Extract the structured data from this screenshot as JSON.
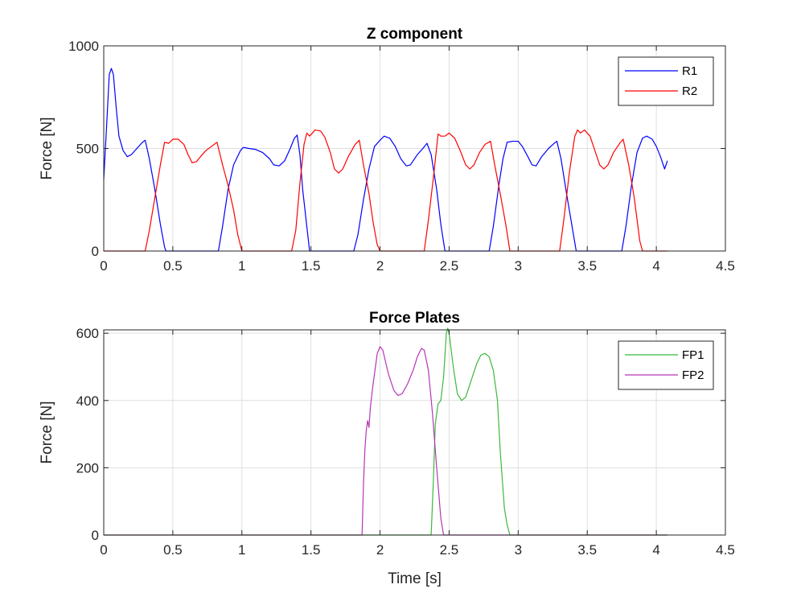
{
  "chart_data": [
    {
      "type": "line",
      "title": "Z component",
      "xlabel": "",
      "ylabel": "Force [N]",
      "xlim": [
        0,
        4.5
      ],
      "ylim": [
        0,
        1000
      ],
      "xticks": [
        0,
        0.5,
        1,
        1.5,
        2,
        2.5,
        3,
        3.5,
        4,
        4.5
      ],
      "yticks": [
        0,
        500,
        1000
      ],
      "xtick_labels": [
        "0",
        "0.5",
        "1",
        "1.5",
        "2",
        "2.5",
        "3",
        "3.5",
        "4",
        "4.5"
      ],
      "ytick_labels": [
        "0",
        "500",
        "1000"
      ],
      "grid": true,
      "legend_position": "top-right",
      "series": [
        {
          "name": "R1",
          "color": "#0000ff",
          "points": [
            [
              0,
              350
            ],
            [
              0.02,
              600
            ],
            [
              0.04,
              860
            ],
            [
              0.055,
              890
            ],
            [
              0.07,
              860
            ],
            [
              0.09,
              700
            ],
            [
              0.11,
              560
            ],
            [
              0.14,
              490
            ],
            [
              0.17,
              460
            ],
            [
              0.2,
              470
            ],
            [
              0.24,
              500
            ],
            [
              0.28,
              530
            ],
            [
              0.3,
              540
            ],
            [
              0.33,
              450
            ],
            [
              0.37,
              300
            ],
            [
              0.41,
              130
            ],
            [
              0.44,
              20
            ],
            [
              0.45,
              0
            ],
            [
              0.83,
              0
            ],
            [
              0.86,
              120
            ],
            [
              0.9,
              300
            ],
            [
              0.94,
              420
            ],
            [
              0.99,
              490
            ],
            [
              1.01,
              505
            ],
            [
              1.05,
              500
            ],
            [
              1.1,
              495
            ],
            [
              1.15,
              480
            ],
            [
              1.2,
              450
            ],
            [
              1.23,
              420
            ],
            [
              1.27,
              415
            ],
            [
              1.31,
              440
            ],
            [
              1.35,
              500
            ],
            [
              1.38,
              550
            ],
            [
              1.4,
              565
            ],
            [
              1.42,
              470
            ],
            [
              1.44,
              300
            ],
            [
              1.47,
              120
            ],
            [
              1.49,
              0
            ],
            [
              1.81,
              0
            ],
            [
              1.84,
              80
            ],
            [
              1.88,
              250
            ],
            [
              1.92,
              400
            ],
            [
              1.96,
              510
            ],
            [
              2.0,
              540
            ],
            [
              2.03,
              560
            ],
            [
              2.07,
              550
            ],
            [
              2.11,
              510
            ],
            [
              2.15,
              450
            ],
            [
              2.19,
              415
            ],
            [
              2.22,
              420
            ],
            [
              2.27,
              470
            ],
            [
              2.31,
              500
            ],
            [
              2.34,
              525
            ],
            [
              2.37,
              470
            ],
            [
              2.41,
              300
            ],
            [
              2.44,
              130
            ],
            [
              2.47,
              0
            ],
            [
              2.79,
              0
            ],
            [
              2.82,
              120
            ],
            [
              2.86,
              320
            ],
            [
              2.89,
              450
            ],
            [
              2.92,
              530
            ],
            [
              2.96,
              535
            ],
            [
              3.0,
              535
            ],
            [
              3.03,
              510
            ],
            [
              3.07,
              460
            ],
            [
              3.1,
              420
            ],
            [
              3.13,
              415
            ],
            [
              3.17,
              460
            ],
            [
              3.22,
              500
            ],
            [
              3.26,
              525
            ],
            [
              3.28,
              535
            ],
            [
              3.31,
              450
            ],
            [
              3.35,
              280
            ],
            [
              3.39,
              120
            ],
            [
              3.42,
              0
            ],
            [
              3.75,
              0
            ],
            [
              3.78,
              120
            ],
            [
              3.82,
              320
            ],
            [
              3.86,
              480
            ],
            [
              3.9,
              550
            ],
            [
              3.93,
              560
            ],
            [
              3.97,
              545
            ],
            [
              4.0,
              510
            ],
            [
              4.03,
              460
            ],
            [
              4.06,
              400
            ],
            [
              4.08,
              440
            ]
          ]
        },
        {
          "name": "R2",
          "color": "#ff0000",
          "points": [
            [
              0,
              0
            ],
            [
              0.3,
              0
            ],
            [
              0.33,
              100
            ],
            [
              0.37,
              260
            ],
            [
              0.41,
              420
            ],
            [
              0.44,
              530
            ],
            [
              0.47,
              525
            ],
            [
              0.5,
              545
            ],
            [
              0.54,
              545
            ],
            [
              0.58,
              520
            ],
            [
              0.61,
              470
            ],
            [
              0.64,
              430
            ],
            [
              0.67,
              435
            ],
            [
              0.7,
              460
            ],
            [
              0.74,
              490
            ],
            [
              0.79,
              515
            ],
            [
              0.82,
              530
            ],
            [
              0.86,
              420
            ],
            [
              0.9,
              320
            ],
            [
              0.94,
              200
            ],
            [
              0.97,
              80
            ],
            [
              1.0,
              0
            ],
            [
              1.36,
              0
            ],
            [
              1.39,
              100
            ],
            [
              1.42,
              330
            ],
            [
              1.45,
              520
            ],
            [
              1.47,
              575
            ],
            [
              1.49,
              560
            ],
            [
              1.53,
              590
            ],
            [
              1.57,
              585
            ],
            [
              1.6,
              555
            ],
            [
              1.64,
              480
            ],
            [
              1.67,
              400
            ],
            [
              1.7,
              380
            ],
            [
              1.73,
              400
            ],
            [
              1.77,
              460
            ],
            [
              1.82,
              520
            ],
            [
              1.85,
              540
            ],
            [
              1.88,
              420
            ],
            [
              1.92,
              280
            ],
            [
              1.95,
              140
            ],
            [
              1.98,
              30
            ],
            [
              2.0,
              0
            ],
            [
              2.32,
              0
            ],
            [
              2.35,
              150
            ],
            [
              2.39,
              380
            ],
            [
              2.42,
              570
            ],
            [
              2.44,
              560
            ],
            [
              2.47,
              560
            ],
            [
              2.5,
              575
            ],
            [
              2.54,
              550
            ],
            [
              2.58,
              490
            ],
            [
              2.62,
              420
            ],
            [
              2.65,
              400
            ],
            [
              2.68,
              420
            ],
            [
              2.72,
              480
            ],
            [
              2.76,
              520
            ],
            [
              2.8,
              535
            ],
            [
              2.83,
              420
            ],
            [
              2.87,
              280
            ],
            [
              2.91,
              130
            ],
            [
              2.94,
              0
            ],
            [
              3.3,
              0
            ],
            [
              3.33,
              150
            ],
            [
              3.37,
              380
            ],
            [
              3.41,
              560
            ],
            [
              3.43,
              590
            ],
            [
              3.45,
              575
            ],
            [
              3.48,
              590
            ],
            [
              3.52,
              560
            ],
            [
              3.56,
              480
            ],
            [
              3.59,
              420
            ],
            [
              3.62,
              400
            ],
            [
              3.65,
              420
            ],
            [
              3.69,
              480
            ],
            [
              3.74,
              530
            ],
            [
              3.76,
              545
            ],
            [
              3.8,
              420
            ],
            [
              3.84,
              260
            ],
            [
              3.88,
              50
            ],
            [
              3.9,
              0
            ],
            [
              4.08,
              0
            ]
          ]
        }
      ]
    },
    {
      "type": "line",
      "title": "Force Plates",
      "xlabel": "Time [s]",
      "ylabel": "Force [N]",
      "xlim": [
        0,
        4.5
      ],
      "ylim": [
        0,
        610
      ],
      "xticks": [
        0,
        0.5,
        1,
        1.5,
        2,
        2.5,
        3,
        3.5,
        4,
        4.5
      ],
      "yticks": [
        0,
        200,
        400,
        600
      ],
      "xtick_labels": [
        "0",
        "0.5",
        "1",
        "1.5",
        "2",
        "2.5",
        "3",
        "3.5",
        "4",
        "4.5"
      ],
      "ytick_labels": [
        "0",
        "200",
        "400",
        "600"
      ],
      "grid": true,
      "legend_position": "top-right",
      "series": [
        {
          "name": "FP1",
          "color": "#3cb83c",
          "points": [
            [
              0,
              0
            ],
            [
              2.37,
              0
            ],
            [
              2.385,
              150
            ],
            [
              2.4,
              330
            ],
            [
              2.42,
              390
            ],
            [
              2.44,
              400
            ],
            [
              2.46,
              470
            ],
            [
              2.48,
              600
            ],
            [
              2.49,
              615
            ],
            [
              2.5,
              600
            ],
            [
              2.53,
              500
            ],
            [
              2.56,
              420
            ],
            [
              2.59,
              400
            ],
            [
              2.62,
              410
            ],
            [
              2.66,
              460
            ],
            [
              2.7,
              510
            ],
            [
              2.73,
              535
            ],
            [
              2.76,
              540
            ],
            [
              2.79,
              530
            ],
            [
              2.82,
              490
            ],
            [
              2.85,
              400
            ],
            [
              2.87,
              250
            ],
            [
              2.9,
              80
            ],
            [
              2.92,
              30
            ],
            [
              2.94,
              0
            ],
            [
              4.08,
              0
            ]
          ]
        },
        {
          "name": "FP2",
          "color": "#b735b7",
          "points": [
            [
              0,
              0
            ],
            [
              1.87,
              0
            ],
            [
              1.88,
              150
            ],
            [
              1.89,
              250
            ],
            [
              1.9,
              310
            ],
            [
              1.91,
              340
            ],
            [
              1.92,
              320
            ],
            [
              1.93,
              380
            ],
            [
              1.95,
              450
            ],
            [
              1.98,
              540
            ],
            [
              2.0,
              560
            ],
            [
              2.02,
              550
            ],
            [
              2.06,
              480
            ],
            [
              2.1,
              430
            ],
            [
              2.13,
              415
            ],
            [
              2.16,
              420
            ],
            [
              2.2,
              450
            ],
            [
              2.24,
              490
            ],
            [
              2.27,
              530
            ],
            [
              2.3,
              555
            ],
            [
              2.32,
              550
            ],
            [
              2.35,
              490
            ],
            [
              2.38,
              360
            ],
            [
              2.41,
              200
            ],
            [
              2.44,
              50
            ],
            [
              2.46,
              0
            ],
            [
              4.08,
              0
            ]
          ]
        }
      ]
    }
  ]
}
